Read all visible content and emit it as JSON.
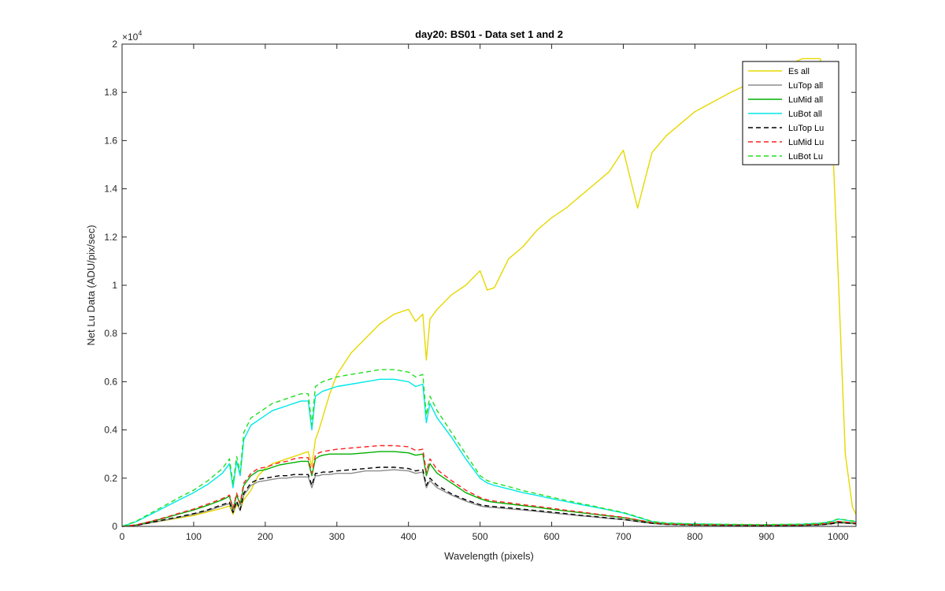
{
  "chart_data": {
    "type": "line",
    "title": "day20: BS01 - Data set 1 and 2",
    "xlabel": "Wavelength (pixels)",
    "ylabel": "Net Lu Data (ADU/pix/sec)",
    "xlim": [
      0,
      1025
    ],
    "ylim": [
      0,
      20000
    ],
    "xticks": [
      0,
      100,
      200,
      300,
      400,
      500,
      600,
      700,
      800,
      900,
      1000
    ],
    "yticks": [
      0,
      2000,
      4000,
      6000,
      8000,
      10000,
      12000,
      14000,
      16000,
      18000,
      20000
    ],
    "ytick_labels": [
      "0",
      "0.2",
      "0.4",
      "0.6",
      "0.8",
      "1",
      "1.2",
      "1.4",
      "1.6",
      "1.8",
      "2"
    ],
    "y_exponent_label": "×10",
    "y_exponent_power": "4",
    "grid": false,
    "legend_position": "top-right",
    "x": [
      0,
      20,
      40,
      60,
      80,
      100,
      120,
      140,
      150,
      155,
      160,
      165,
      170,
      180,
      190,
      200,
      210,
      220,
      230,
      240,
      250,
      260,
      265,
      270,
      275,
      280,
      290,
      300,
      320,
      340,
      360,
      380,
      400,
      410,
      420,
      425,
      430,
      440,
      460,
      480,
      500,
      510,
      520,
      540,
      560,
      580,
      600,
      620,
      640,
      660,
      680,
      700,
      720,
      740,
      760,
      800,
      850,
      900,
      950,
      975,
      990,
      1000,
      1010,
      1020,
      1025
    ],
    "series": [
      {
        "name": "Es  all",
        "color": "#e6d800",
        "dash": false,
        "values": [
          0,
          50,
          150,
          250,
          350,
          450,
          600,
          750,
          850,
          500,
          900,
          700,
          1100,
          1500,
          2100,
          2400,
          2600,
          2700,
          2800,
          2900,
          3000,
          3100,
          2500,
          3600,
          4000,
          4500,
          5500,
          6300,
          7200,
          7800,
          8400,
          8800,
          9000,
          8500,
          8800,
          6900,
          8600,
          9000,
          9600,
          10000,
          10600,
          9800,
          9900,
          11100,
          11600,
          12300,
          12800,
          13200,
          13700,
          14200,
          14700,
          15600,
          13200,
          15500,
          16200,
          17200,
          18000,
          18700,
          19400,
          19400,
          17500,
          10500,
          3000,
          800,
          500
        ]
      },
      {
        "name": "LuTop  all",
        "color": "#8c8c8c",
        "dash": false,
        "values": [
          0,
          40,
          150,
          260,
          380,
          500,
          650,
          850,
          950,
          550,
          1000,
          650,
          1300,
          1700,
          1850,
          1900,
          1950,
          2000,
          2000,
          2050,
          2050,
          2050,
          1600,
          2100,
          2100,
          2150,
          2150,
          2200,
          2200,
          2300,
          2300,
          2350,
          2300,
          2200,
          2250,
          1600,
          1900,
          1600,
          1300,
          1050,
          850,
          800,
          780,
          730,
          680,
          620,
          560,
          500,
          440,
          390,
          330,
          280,
          200,
          120,
          80,
          50,
          40,
          30,
          40,
          60,
          100,
          150,
          130,
          110,
          100
        ]
      },
      {
        "name": "LuMid  all",
        "color": "#00b000",
        "dash": false,
        "values": [
          0,
          60,
          200,
          350,
          520,
          680,
          880,
          1100,
          1250,
          700,
          1300,
          900,
          1700,
          2100,
          2300,
          2350,
          2450,
          2550,
          2600,
          2650,
          2700,
          2700,
          2100,
          2800,
          2900,
          2950,
          3000,
          3000,
          3000,
          3050,
          3100,
          3100,
          3050,
          2950,
          3000,
          2100,
          2600,
          2200,
          1800,
          1400,
          1150,
          1050,
          1000,
          930,
          860,
          790,
          710,
          640,
          570,
          500,
          430,
          360,
          260,
          150,
          100,
          70,
          60,
          50,
          60,
          90,
          140,
          200,
          170,
          150,
          130
        ]
      },
      {
        "name": "LuBot  all",
        "color": "#00e8e8",
        "dash": false,
        "values": [
          0,
          200,
          500,
          800,
          1100,
          1400,
          1750,
          2200,
          2600,
          1600,
          2700,
          2100,
          3600,
          4200,
          4400,
          4600,
          4800,
          4900,
          5000,
          5100,
          5200,
          5200,
          4000,
          5400,
          5500,
          5600,
          5700,
          5800,
          5900,
          6000,
          6100,
          6100,
          6000,
          5800,
          5900,
          4300,
          5100,
          4500,
          3700,
          2800,
          2000,
          1800,
          1700,
          1550,
          1400,
          1280,
          1150,
          1030,
          910,
          800,
          680,
          560,
          380,
          200,
          130,
          100,
          80,
          70,
          90,
          130,
          200,
          300,
          260,
          220,
          200
        ]
      },
      {
        "name": "LuTop  Lu",
        "color": "#000000",
        "dash": true,
        "values": [
          0,
          45,
          160,
          280,
          400,
          530,
          690,
          900,
          1000,
          580,
          1050,
          690,
          1380,
          1800,
          1950,
          2000,
          2050,
          2100,
          2100,
          2150,
          2150,
          2150,
          1700,
          2200,
          2200,
          2250,
          2250,
          2300,
          2350,
          2400,
          2450,
          2450,
          2400,
          2300,
          2350,
          1700,
          2000,
          1700,
          1350,
          1100,
          900,
          850,
          820,
          770,
          710,
          650,
          590,
          530,
          460,
          410,
          350,
          290,
          210,
          130,
          85,
          55,
          45,
          35,
          45,
          65,
          105,
          160,
          140,
          120,
          110
        ]
      },
      {
        "name": "LuMid  Lu",
        "color": "#ff2020",
        "dash": true,
        "values": [
          0,
          65,
          210,
          370,
          550,
          720,
          930,
          1150,
          1300,
          740,
          1380,
          950,
          1800,
          2200,
          2400,
          2450,
          2550,
          2650,
          2700,
          2800,
          2850,
          2850,
          2200,
          2950,
          3050,
          3100,
          3150,
          3200,
          3250,
          3300,
          3350,
          3350,
          3300,
          3150,
          3200,
          2250,
          2800,
          2350,
          1900,
          1500,
          1200,
          1100,
          1050,
          980,
          900,
          830,
          750,
          670,
          600,
          520,
          450,
          380,
          270,
          160,
          105,
          75,
          65,
          55,
          65,
          95,
          150,
          210,
          180,
          160,
          140
        ]
      },
      {
        "name": "LuBot  Lu",
        "color": "#20e020",
        "dash": true,
        "values": [
          0,
          220,
          550,
          870,
          1200,
          1500,
          1900,
          2400,
          2800,
          1750,
          2900,
          2250,
          3900,
          4500,
          4700,
          4900,
          5100,
          5200,
          5300,
          5400,
          5500,
          5500,
          4200,
          5800,
          5900,
          6000,
          6100,
          6200,
          6300,
          6400,
          6500,
          6500,
          6400,
          6200,
          6300,
          4600,
          5400,
          4800,
          3900,
          3000,
          2100,
          1900,
          1800,
          1650,
          1480,
          1350,
          1210,
          1080,
          950,
          830,
          700,
          580,
          400,
          210,
          140,
          105,
          85,
          75,
          95,
          135,
          210,
          310,
          270,
          230,
          210
        ]
      }
    ]
  }
}
